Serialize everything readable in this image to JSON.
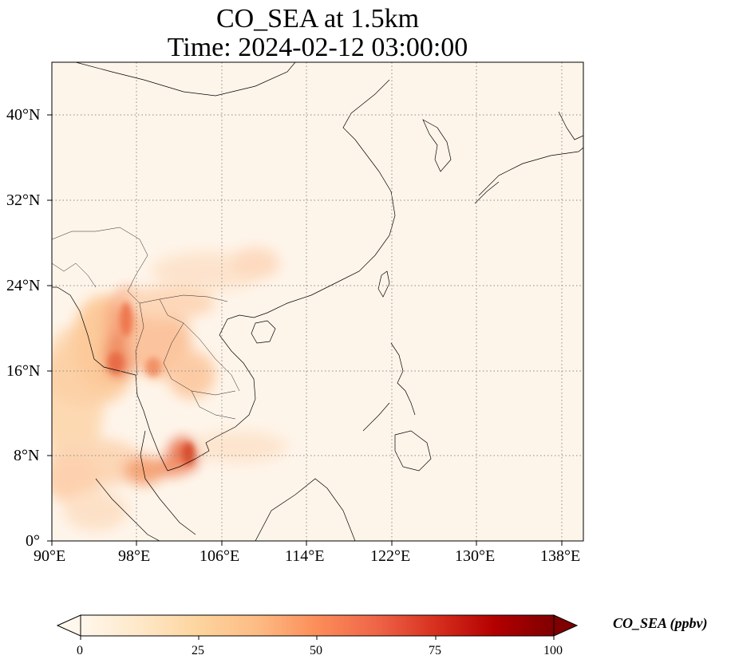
{
  "title": {
    "line1": "CO_SEA at 1.5km",
    "line2": "Time: 2024-02-12 03:00:00"
  },
  "map": {
    "projection": "PlateCarree",
    "lon_range": [
      90,
      140
    ],
    "lat_range": [
      0,
      45
    ],
    "gridlines": "dotted",
    "coastlines": true,
    "borders": true
  },
  "axes": {
    "x_ticks": [
      "90°E",
      "98°E",
      "106°E",
      "114°E",
      "122°E",
      "130°E",
      "138°E"
    ],
    "y_ticks": [
      "0°",
      "8°N",
      "16°N",
      "24°N",
      "32°N",
      "40°N"
    ]
  },
  "colorbar": {
    "label": "CO_SEA (ppbv)",
    "ticks": [
      "0",
      "25",
      "50",
      "75",
      "100"
    ],
    "range": [
      0,
      100
    ],
    "extend": "both",
    "colormap": "OrRd",
    "colors": [
      "#fff7ec",
      "#fee8c8",
      "#fdd49e",
      "#fdbb84",
      "#fc8d59",
      "#ef6548",
      "#d7301f",
      "#b30000",
      "#7f0000"
    ]
  },
  "chart_data": {
    "type": "heatmap",
    "variable": "CO_SEA",
    "units": "ppbv",
    "level": "1.5km",
    "time": "2024-02-12 03:00:00",
    "plumes": [
      {
        "lon": 98.5,
        "lat": 18.5,
        "value": 65
      },
      {
        "lon": 100.5,
        "lat": 20.5,
        "value": 55
      },
      {
        "lon": 102.5,
        "lat": 17.0,
        "value": 40
      },
      {
        "lon": 103.0,
        "lat": 8.5,
        "value": 75
      },
      {
        "lon": 98.0,
        "lat": 6.5,
        "value": 35
      },
      {
        "lon": 92.0,
        "lat": 13.0,
        "value": 25
      },
      {
        "lon": 109.0,
        "lat": 25.0,
        "value": 15
      }
    ]
  }
}
